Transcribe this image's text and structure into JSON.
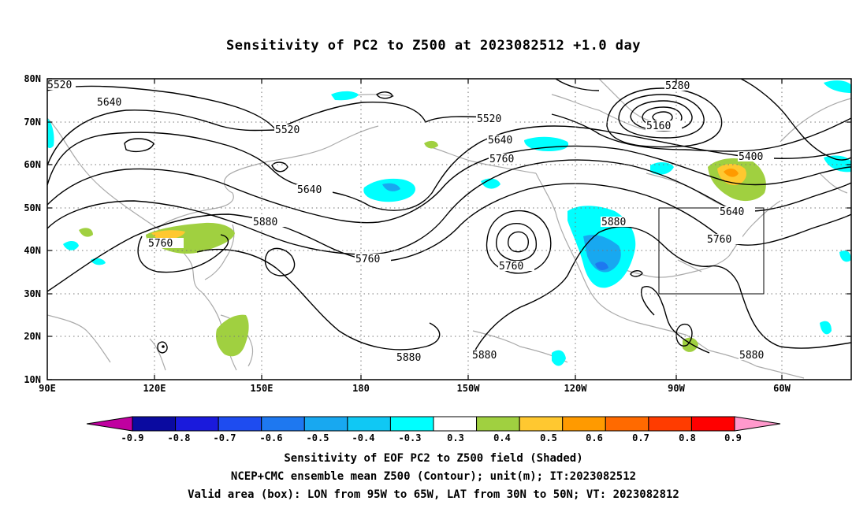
{
  "title": "Sensitivity of PC2 to Z500 at 2023082512 +1.0 day",
  "captions": {
    "line1": "Sensitivity of EOF PC2 to Z500 field (Shaded)",
    "line2": "NCEP+CMC ensemble mean Z500 (Contour); unit(m); IT:2023082512",
    "line3": "Valid area (box): LON from 95W to 65W, LAT from 30N to 50N; VT: 2023082812"
  },
  "axes": {
    "lat_labels": [
      "80N",
      "70N",
      "60N",
      "50N",
      "40N",
      "30N",
      "20N",
      "10N"
    ],
    "lon_labels": [
      "90E",
      "120E",
      "150E",
      "180",
      "150W",
      "120W",
      "90W",
      "60W"
    ]
  },
  "colorbar": {
    "labels": [
      "-0.9",
      "-0.8",
      "-0.7",
      "-0.6",
      "-0.5",
      "-0.4",
      "-0.3",
      "0.3",
      "0.4",
      "0.5",
      "0.6",
      "0.7",
      "0.8",
      "0.9"
    ],
    "colors": [
      "#c000a0",
      "#0a0aa0",
      "#1a1adc",
      "#1e4cf0",
      "#1e78f0",
      "#18a8f0",
      "#10c8f4",
      "#00ffff",
      "#ffffff",
      "#a0d040",
      "#ffc830",
      "#ff9a00",
      "#ff6a00",
      "#ff3c00",
      "#ff0000",
      "#ff99cc"
    ]
  },
  "contour_labels": [
    {
      "text": "5520"
    },
    {
      "text": "5640"
    },
    {
      "text": "5520"
    },
    {
      "text": "5640"
    },
    {
      "text": "5760"
    },
    {
      "text": "5880"
    },
    {
      "text": "5760"
    },
    {
      "text": "5520"
    },
    {
      "text": "5640"
    },
    {
      "text": "5760"
    },
    {
      "text": "5760"
    },
    {
      "text": "5880"
    },
    {
      "text": "5280"
    },
    {
      "text": "5160"
    },
    {
      "text": "5400"
    },
    {
      "text": "5640"
    },
    {
      "text": "5760"
    },
    {
      "text": "5880"
    },
    {
      "text": "5880"
    },
    {
      "text": "5880"
    }
  ],
  "valid_box": {
    "lon_min": "95W",
    "lon_max": "65W",
    "lat_min": "30N",
    "lat_max": "50N"
  }
}
